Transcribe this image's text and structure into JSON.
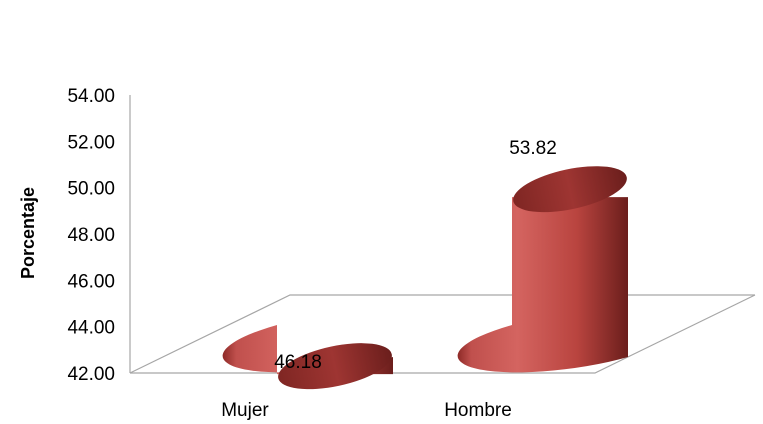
{
  "chart_data": {
    "type": "bar",
    "style": "3d-cylinder",
    "categories": [
      "Mujer",
      "Hombre"
    ],
    "values": [
      46.18,
      53.82
    ],
    "data_labels": [
      "46.18",
      "53.82"
    ],
    "ylabel": "Porcentaje",
    "ylim": [
      42.0,
      54.0
    ],
    "yticks": [
      "42.00",
      "44.00",
      "46.00",
      "48.00",
      "50.00",
      "52.00",
      "54.00"
    ],
    "grid": false,
    "legend": false,
    "bar_color": "#c0504d"
  }
}
